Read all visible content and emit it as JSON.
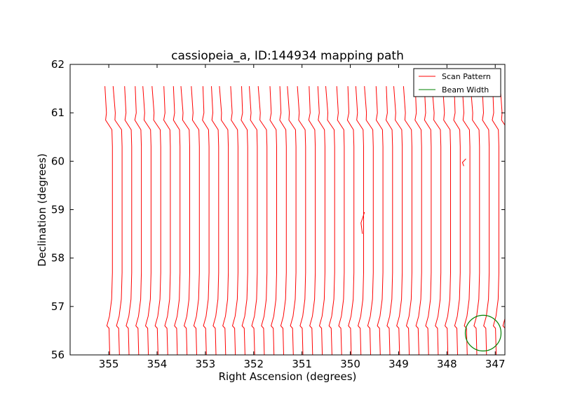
{
  "chart_data": {
    "type": "line",
    "title": "cassiopeia_a, ID:144934 mapping path",
    "xlabel": "Right Ascension (degrees)",
    "ylabel": "Declination (degrees)",
    "xlim": [
      355.8,
      346.8
    ],
    "ylim": [
      56,
      62
    ],
    "x_ticks": [
      355,
      354,
      353,
      352,
      351,
      350,
      349,
      348,
      347
    ],
    "y_ticks": [
      56,
      57,
      58,
      59,
      60,
      61,
      62
    ],
    "grid": false,
    "legend_position": "top-right",
    "series": [
      {
        "name": "Scan Pattern",
        "color": "#ff0000",
        "scan": {
          "ra_start": 355.0,
          "ra_end": 346.8,
          "ra_step": 0.2,
          "dec_bottom": 56.0,
          "dec_lower_turn": 56.6,
          "dec_upper_turn": 60.9,
          "dec_top": 61.55
        }
      },
      {
        "name": "Beam Width",
        "color": "#008000",
        "circle": {
          "ra_center": 347.25,
          "dec_center": 56.45,
          "radius_deg": 0.37
        }
      }
    ],
    "annotations": [
      {
        "type": "scan-glitch",
        "ra": 349.75,
        "dec": [
          58.5,
          58.95
        ]
      },
      {
        "type": "scan-glitch",
        "ra": 347.65,
        "dec": [
          59.9,
          60.05
        ]
      }
    ]
  }
}
